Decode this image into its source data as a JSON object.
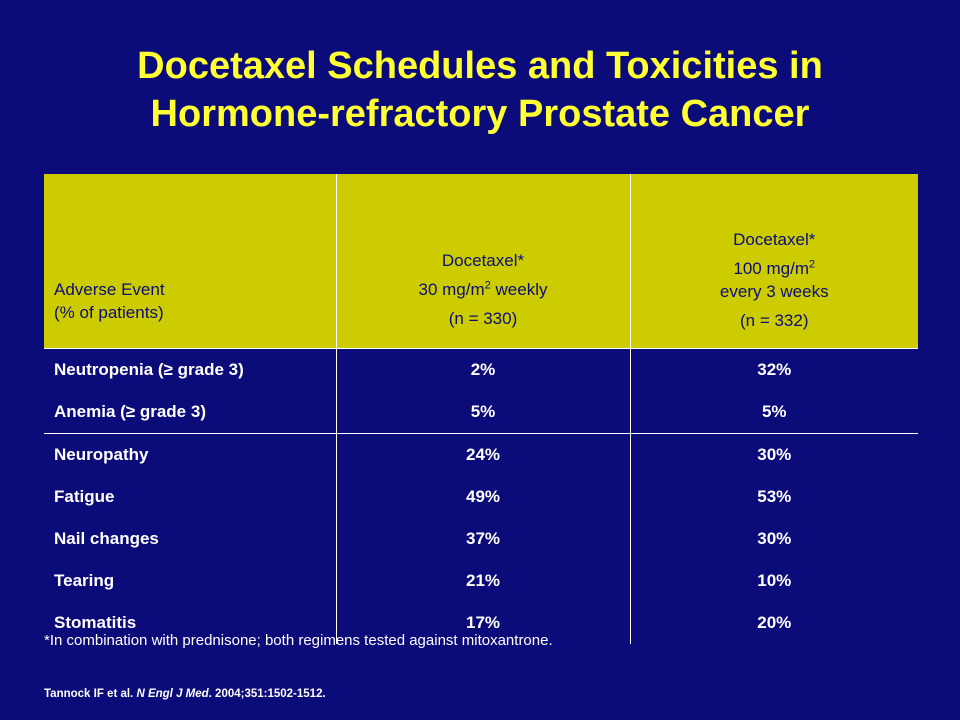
{
  "title": {
    "line1": "Docetaxel Schedules and Toxicities in",
    "line2": "Hormone-refractory Prostate Cancer"
  },
  "table": {
    "headers": {
      "event": {
        "line1": "Adverse Event",
        "line2": "(% of patients)"
      },
      "weekly": {
        "drug": "Docetaxel*",
        "dose_prefix": "30 mg/m",
        "dose_sup": "2",
        "dose_suffix": " weekly",
        "n": "(n = 330)"
      },
      "q3w": {
        "drug": "Docetaxel*",
        "dose_prefix": "100 mg/m",
        "dose_sup": "2",
        "schedule": "every 3 weeks",
        "n": "(n = 332)"
      }
    },
    "group1": [
      {
        "event": "Neutropenia (≥ grade 3)",
        "weekly": "2%",
        "q3w": "32%"
      },
      {
        "event": "Anemia (≥ grade 3)",
        "weekly": "5%",
        "q3w": "5%"
      }
    ],
    "group2": [
      {
        "event": "Neuropathy",
        "weekly": "24%",
        "q3w": "30%"
      },
      {
        "event": "Fatigue",
        "weekly": "49%",
        "q3w": "53%"
      },
      {
        "event": "Nail changes",
        "weekly": "37%",
        "q3w": "30%"
      },
      {
        "event": "Tearing",
        "weekly": "21%",
        "q3w": "10%"
      },
      {
        "event": "Stomatitis",
        "weekly": "17%",
        "q3w": "20%"
      }
    ]
  },
  "footnote": "*In combination with prednisone; both regimens tested against mitoxantrone.",
  "citation": {
    "authors": "Tannock IF et al. ",
    "journal": "N Engl J Med",
    "details": ". 2004;351:1502-1512."
  },
  "colors": {
    "background": "#0b0b7a",
    "title": "#ffff33",
    "header_fill": "#cccc00",
    "text": "#ffffff"
  }
}
